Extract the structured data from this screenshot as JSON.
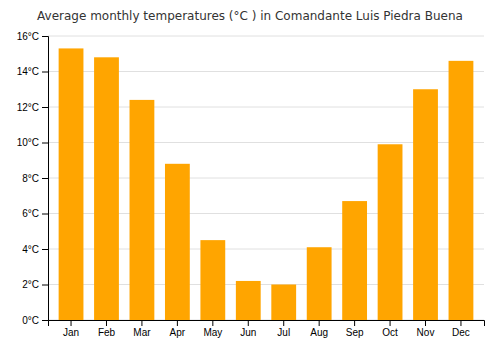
{
  "chart_data": {
    "type": "bar",
    "title": "Average monthly temperatures (°C ) in Comandante Luis Piedra Buena",
    "categories": [
      "Jan",
      "Feb",
      "Mar",
      "Apr",
      "May",
      "Jun",
      "Jul",
      "Aug",
      "Sep",
      "Oct",
      "Nov",
      "Dec"
    ],
    "values": [
      15.3,
      14.8,
      12.4,
      8.8,
      4.5,
      2.2,
      2.0,
      4.1,
      6.7,
      9.9,
      13.0,
      14.6
    ],
    "color": "#FFA500",
    "ylim": [
      0,
      16
    ],
    "yticks": [
      {
        "value": 0,
        "label": "0°C"
      },
      {
        "value": 2,
        "label": "2°C"
      },
      {
        "value": 4,
        "label": "4°C"
      },
      {
        "value": 6,
        "label": "6°C"
      },
      {
        "value": 8,
        "label": "8°C"
      },
      {
        "value": 10,
        "label": "10°C"
      },
      {
        "value": 12,
        "label": "12°C"
      },
      {
        "value": 14,
        "label": "14°C"
      },
      {
        "value": 16,
        "label": "16°C"
      }
    ],
    "grid": true
  }
}
